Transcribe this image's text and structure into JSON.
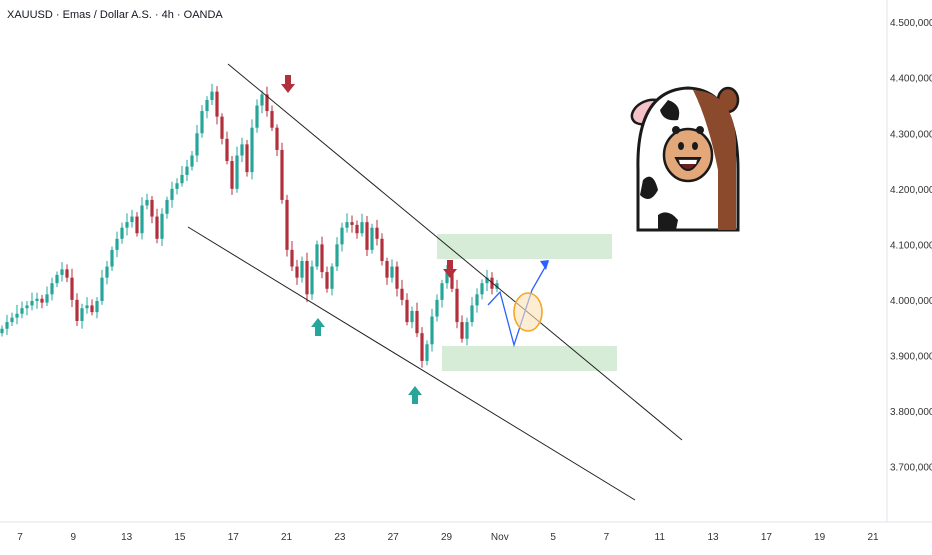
{
  "header": {
    "symbol_title": "XAUUSD · Emas / Dollar A.S. · 4h · OANDA"
  },
  "colors": {
    "up": "#26a69a",
    "down": "#b2303b",
    "background": "#ffffff",
    "grid_text": "#333333",
    "trendline": "#222222",
    "projection": "#2962ff",
    "zone_fill": "#c8e6c9",
    "highlight": "#f4a62a"
  },
  "chart_data": {
    "type": "candlestick",
    "title": "XAUUSD · Emas / Dollar A.S. · 4h · OANDA",
    "xlabel": "",
    "ylabel": "",
    "x_ticks": [
      "7",
      "9",
      "13",
      "15",
      "17",
      "21",
      "23",
      "27",
      "29",
      "Nov",
      "5",
      "7",
      "11",
      "13",
      "17",
      "19",
      "21"
    ],
    "y_ticks": [
      "3.700,000",
      "3.800,000",
      "3.900,000",
      "4.000,000",
      "4.100,000",
      "4.200,000",
      "4.300,000",
      "4.400,000",
      "4.500,000"
    ],
    "ylim": [
      3600,
      4540
    ],
    "price_series": [
      3948,
      3960,
      3968,
      3975,
      3985,
      3990,
      3998,
      4002,
      3995,
      4010,
      4030,
      4045,
      4055,
      4040,
      4000,
      3962,
      3985,
      3990,
      3978,
      3998,
      4040,
      4060,
      4090,
      4110,
      4130,
      4140,
      4150,
      4120,
      4170,
      4180,
      4150,
      4110,
      4155,
      4180,
      4200,
      4210,
      4225,
      4240,
      4260,
      4300,
      4340,
      4360,
      4375,
      4330,
      4290,
      4250,
      4200,
      4260,
      4280,
      4230,
      4310,
      4350,
      4370,
      4340,
      4310,
      4270,
      4180,
      4090,
      4060,
      4040,
      4070,
      4010,
      4060,
      4100,
      4050,
      4020,
      4060,
      4100,
      4130,
      4140,
      4135,
      4120,
      4140,
      4090,
      4130,
      4110,
      4070,
      4040,
      4060,
      4020,
      4000,
      3960,
      3980,
      3940,
      3890,
      3920,
      3970,
      4000,
      4030,
      4050,
      4020,
      3960,
      3930,
      3960,
      3990,
      4010,
      4030,
      4040,
      4020,
      4030
    ],
    "annotations": {
      "upper_trendline": {
        "from": [
          "~Oct 16",
          4470
        ],
        "to": [
          "~Nov 9",
          3760
        ]
      },
      "lower_trendline": {
        "from": [
          "~Oct 15",
          4160
        ],
        "to": [
          "~Nov 9",
          3640
        ]
      },
      "resistance_zone": [
        4095,
        4140
      ],
      "support_zone": [
        3885,
        3935
      ],
      "projected_path": [
        4010,
        4050,
        3930,
        4040,
        4080
      ],
      "sell_arrows": 2,
      "buy_arrows": 2
    }
  }
}
